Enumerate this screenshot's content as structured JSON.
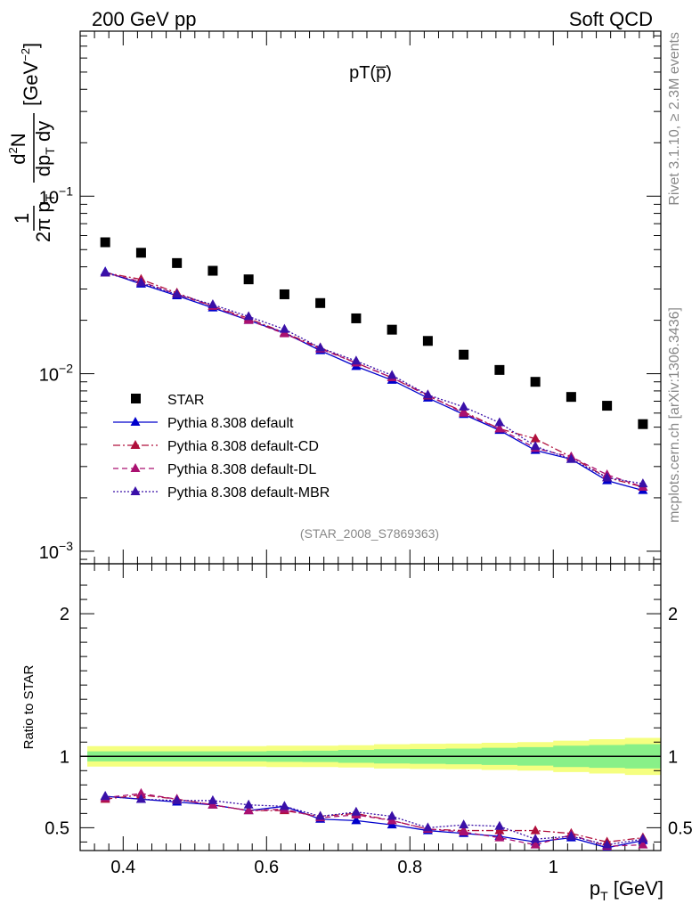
{
  "header": {
    "left": "200 GeV pp",
    "right": "Soft QCD",
    "plot_title": "pT(p̅)",
    "analysis_tag": "(STAR_2008_S7869363)",
    "side_top": "Rivet 3.1.10, ≥ 2.3M events",
    "side_bottom": "mcplots.cern.ch [arXiv:1306.3436]"
  },
  "colors": {
    "star": "#000000",
    "default": "#0000cc",
    "cd": "#b0103c",
    "dl": "#aa1070",
    "mbr": "#3a10a8",
    "band_yellow": "#f5ff80",
    "band_green": "#88f088"
  },
  "chart_data": [
    {
      "type": "scatter",
      "panel": "main",
      "xlabel": "p_T [GeV]",
      "ylabel": "1/(2π p_T) d²N/(dp_T dy) [GeV⁻²]",
      "ylog": true,
      "ylim": [
        0.00085,
        0.85
      ],
      "xlim": [
        0.34,
        1.15
      ],
      "y_ticks": [
        {
          "v": 0.1,
          "base": "10",
          "exp": "−1"
        },
        {
          "v": 0.01,
          "base": "10",
          "exp": "−2"
        },
        {
          "v": 0.001,
          "base": "10",
          "exp": "−3"
        }
      ],
      "x": [
        0.375,
        0.425,
        0.475,
        0.525,
        0.575,
        0.625,
        0.675,
        0.725,
        0.775,
        0.825,
        0.875,
        0.925,
        0.975,
        1.025,
        1.075,
        1.125
      ],
      "legend": "center-left",
      "series": [
        {
          "name": "STAR",
          "key": "star",
          "style": "square",
          "values": [
            0.055,
            0.048,
            0.042,
            0.038,
            0.034,
            0.028,
            0.025,
            0.0205,
            0.0177,
            0.0153,
            0.0128,
            0.0105,
            0.009,
            0.0074,
            0.0066,
            0.0052
          ]
        },
        {
          "name": "Pythia 8.308 default",
          "key": "default",
          "style": "solid",
          "values": [
            0.0375,
            0.032,
            0.0275,
            0.0235,
            0.02,
            0.017,
            0.0135,
            0.011,
            0.0092,
            0.0073,
            0.0059,
            0.0048,
            0.0037,
            0.0033,
            0.0025,
            0.0022
          ]
        },
        {
          "name": "Pythia 8.308 default-CD",
          "key": "cd",
          "style": "dashdot",
          "values": [
            0.037,
            0.034,
            0.0285,
            0.024,
            0.0205,
            0.017,
            0.014,
            0.0115,
            0.0095,
            0.0075,
            0.0061,
            0.0049,
            0.0043,
            0.0034,
            0.0026,
            0.0023
          ]
        },
        {
          "name": "Pythia 8.308 default-DL",
          "key": "dl",
          "style": "dashed",
          "values": [
            0.037,
            0.033,
            0.028,
            0.024,
            0.02,
            0.0168,
            0.0138,
            0.0115,
            0.0095,
            0.0076,
            0.006,
            0.0049,
            0.0038,
            0.0034,
            0.0027,
            0.0023
          ]
        },
        {
          "name": "Pythia 8.308 default-MBR",
          "key": "mbr",
          "style": "dotted",
          "values": [
            0.037,
            0.0325,
            0.028,
            0.0245,
            0.021,
            0.0178,
            0.014,
            0.0118,
            0.0098,
            0.0076,
            0.0065,
            0.0053,
            0.0039,
            0.0033,
            0.0026,
            0.0024
          ]
        }
      ]
    },
    {
      "type": "scatter",
      "panel": "ratio",
      "ylabel": "Ratio to STAR",
      "xlabel": "p_T [GeV]",
      "ylim": [
        0.34,
        2.35
      ],
      "xlim": [
        0.34,
        1.15
      ],
      "y_ticks": [
        0.5,
        1,
        2
      ],
      "x_ticks": [
        0.4,
        0.6,
        0.8,
        1
      ],
      "x": [
        0.375,
        0.425,
        0.475,
        0.525,
        0.575,
        0.625,
        0.675,
        0.725,
        0.775,
        0.825,
        0.875,
        0.925,
        0.975,
        1.025,
        1.075,
        1.125
      ],
      "band_yellow": [
        0.072,
        0.072,
        0.072,
        0.072,
        0.072,
        0.075,
        0.075,
        0.078,
        0.085,
        0.088,
        0.09,
        0.095,
        0.1,
        0.11,
        0.12,
        0.13
      ],
      "band_green": [
        0.035,
        0.035,
        0.035,
        0.035,
        0.035,
        0.038,
        0.04,
        0.045,
        0.05,
        0.052,
        0.055,
        0.06,
        0.065,
        0.075,
        0.08,
        0.085
      ],
      "series": [
        {
          "name": "Pythia 8.308 default",
          "key": "default",
          "style": "solid",
          "values": [
            0.72,
            0.7,
            0.68,
            0.66,
            0.62,
            0.65,
            0.56,
            0.55,
            0.52,
            0.48,
            0.46,
            0.44,
            0.4,
            0.43,
            0.36,
            0.41
          ]
        },
        {
          "name": "Pythia 8.308 default-CD",
          "key": "cd",
          "style": "dashdot",
          "values": [
            0.7,
            0.73,
            0.7,
            0.66,
            0.62,
            0.62,
            0.58,
            0.6,
            0.55,
            0.49,
            0.48,
            0.48,
            0.48,
            0.46,
            0.4,
            0.43
          ]
        },
        {
          "name": "Pythia 8.308 default-DL",
          "key": "dl",
          "style": "dashed",
          "values": [
            0.71,
            0.74,
            0.7,
            0.66,
            0.62,
            0.63,
            0.57,
            0.59,
            0.55,
            0.49,
            0.47,
            0.43,
            0.38,
            0.45,
            0.37,
            0.38
          ]
        },
        {
          "name": "Pythia 8.308 default-MBR",
          "key": "mbr",
          "style": "dotted",
          "values": [
            0.72,
            0.7,
            0.69,
            0.69,
            0.66,
            0.65,
            0.58,
            0.61,
            0.58,
            0.5,
            0.52,
            0.51,
            0.42,
            0.44,
            0.38,
            0.42
          ]
        }
      ]
    }
  ]
}
